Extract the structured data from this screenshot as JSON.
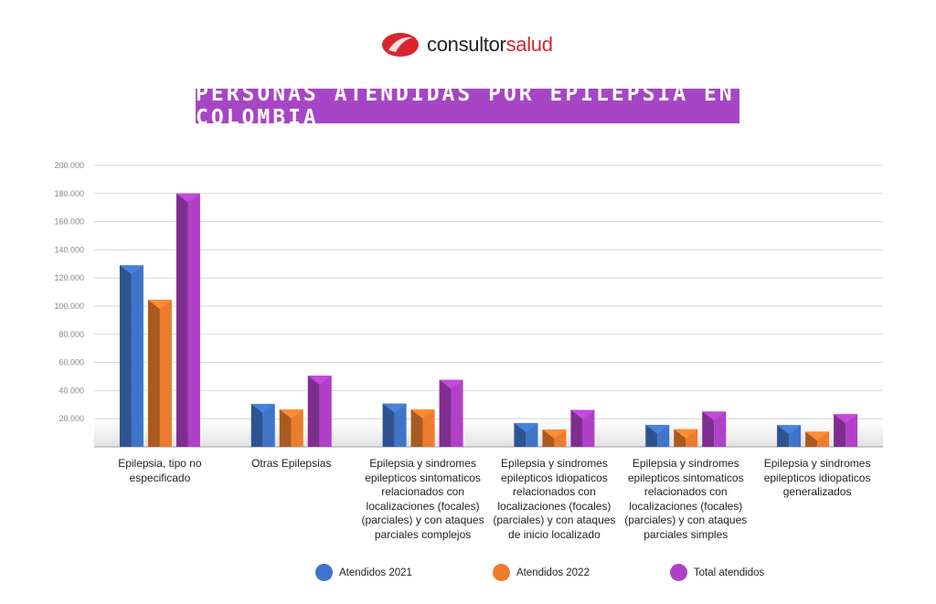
{
  "logo": {
    "text_dark": "consultor",
    "text_red": "salud"
  },
  "title": "PERSONAS ATENDIDAS POR EPILEPSIA EN COLOMBIA",
  "chart_data": {
    "type": "bar",
    "title": "PERSONAS ATENDIDAS POR EPILEPSIA EN COLOMBIA",
    "categories": [
      "Epilepsia, tipo no especificado",
      "Otras Epilepsias",
      "Epilepsia y sindromes epilepticos sintomaticos relacionados con localizaciones (focales) (parciales) y con ataques parciales complejos",
      "Epilepsia y sindromes epilepticos idiopaticos relacionados con localizaciones (focales) (parciales) y con ataques de inicio localizado",
      "Epilepsia y sindromes epilepticos sintomaticos relacionados con localizaciones (focales) (parciales) y con ataques parciales simples",
      "Epilepsia y sindromes epilepticos idiopaticos generalizados"
    ],
    "series": [
      {
        "name": "Atendidos 2021",
        "color": "#3f74c9",
        "values": [
          129000,
          30500,
          30700,
          16900,
          15600,
          15400
        ]
      },
      {
        "name": "Atendidos 2022",
        "color": "#ec7d2e",
        "values": [
          104500,
          26600,
          26600,
          12300,
          12500,
          10800
        ]
      },
      {
        "name": "Total atendidos",
        "color": "#b040c8",
        "values": [
          180000,
          50600,
          47600,
          26200,
          25100,
          23200
        ]
      }
    ],
    "ylim": [
      0,
      200000
    ],
    "yticks": [
      "20.000",
      "40.000",
      "60.000",
      "80.000",
      "100.000",
      "120.000",
      "140.000",
      "160.000",
      "180.000",
      "200.000"
    ],
    "grid": true,
    "legend": "bottom"
  }
}
